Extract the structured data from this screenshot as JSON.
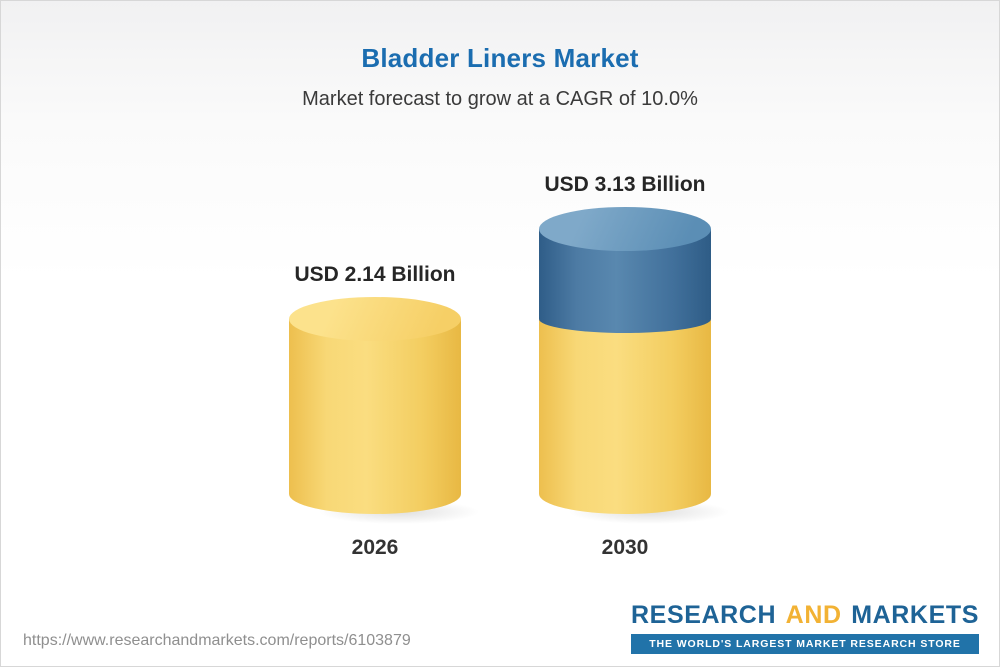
{
  "header": {
    "title": "Bladder Liners Market",
    "subtitle": "Market forecast to grow at a CAGR of 10.0%"
  },
  "chart_data": {
    "type": "bar",
    "title": "Bladder Liners Market",
    "subtitle": "Market forecast to grow at a CAGR of 10.0%",
    "cagr_percent": 10.0,
    "unit": "USD Billion",
    "categories": [
      "2026",
      "2030"
    ],
    "values": [
      2.14,
      3.13
    ],
    "value_labels": [
      "USD 2.14 Billion",
      "USD 3.13 Billion"
    ],
    "ylim": [
      0,
      3.5
    ],
    "grid": false,
    "legend": false,
    "colors": {
      "base_segment": "#F5CB5F",
      "growth_segment": "#41719C",
      "title_accent": "#1B6DB0"
    },
    "notes": "2030 bar is a stacked cylinder: yellow base equals 2026 value (2.14), blue top segment is the growth to 3.13"
  },
  "footer": {
    "report_url": "https://www.researchandmarkets.com/reports/6103879",
    "brand": {
      "name_part1": "RESEARCH",
      "name_part2": "AND",
      "name_part3": "MARKETS",
      "tagline": "THE WORLD'S LARGEST MARKET RESEARCH STORE"
    }
  }
}
